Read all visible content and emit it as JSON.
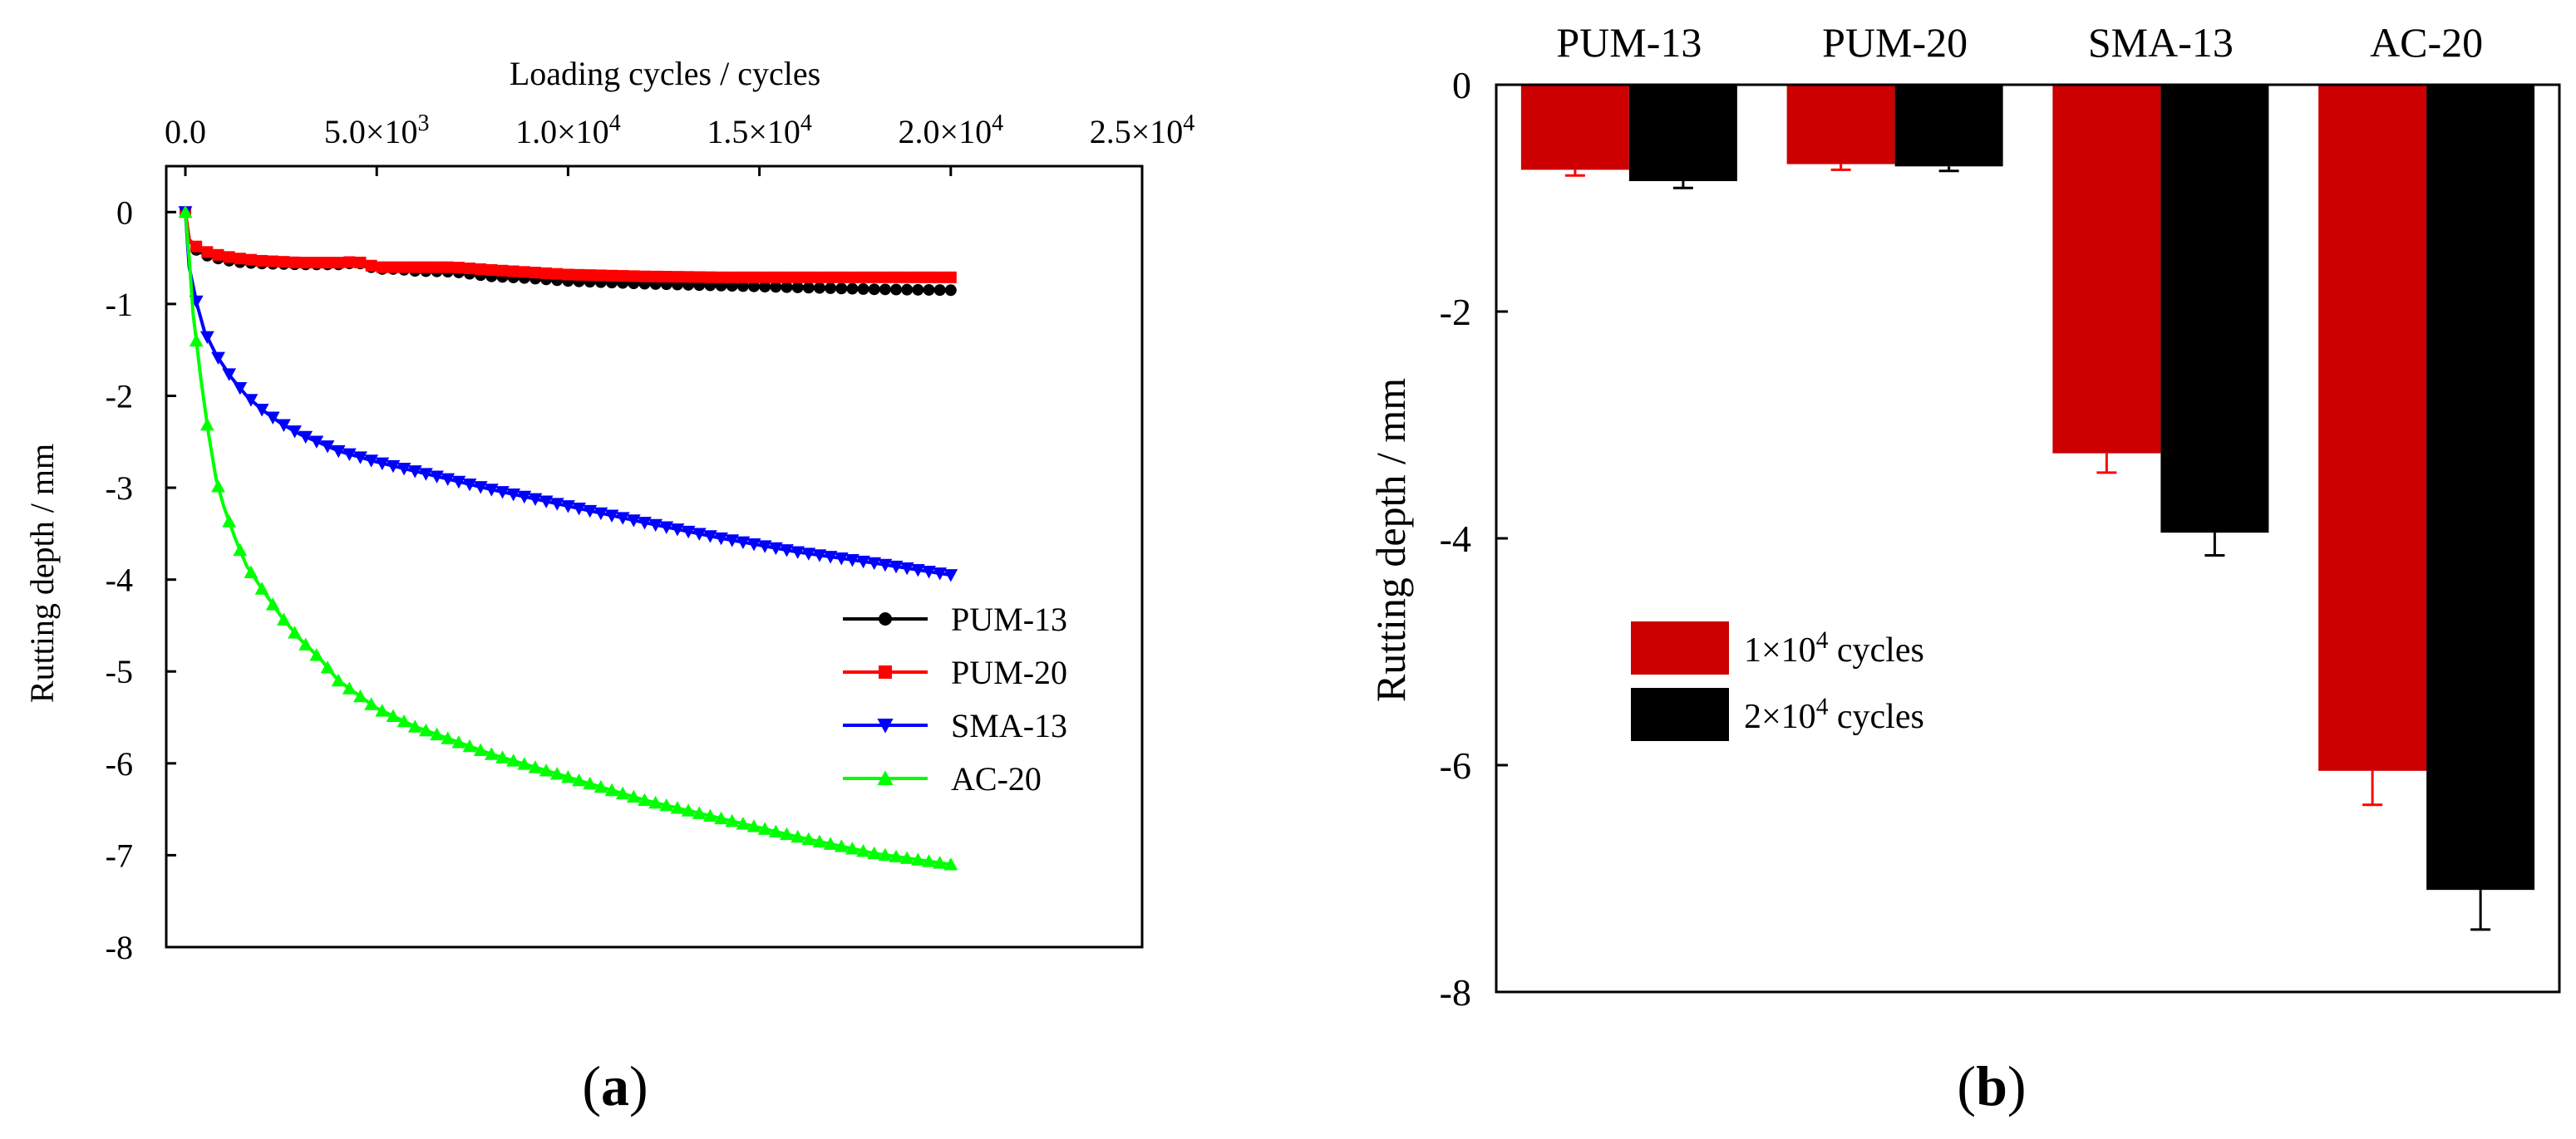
{
  "chart_data": [
    {
      "panel": "a",
      "type": "line",
      "panel_label": "a",
      "xlabel": "Loading cycles / cycles",
      "ylabel": "Rutting depth / mm",
      "xlim": [
        -500,
        25000
      ],
      "ylim": [
        -8,
        0.5
      ],
      "x_ticks": [
        {
          "value": 0,
          "label": "0.0",
          "sup": ""
        },
        {
          "value": 5000,
          "label": "5.0×10",
          "sup": "3"
        },
        {
          "value": 10000,
          "label": "1.0×10",
          "sup": "4"
        },
        {
          "value": 15000,
          "label": "1.5×10",
          "sup": "4"
        },
        {
          "value": 20000,
          "label": "2.0×10",
          "sup": "4"
        },
        {
          "value": 25000,
          "label": "2.5×10",
          "sup": "4"
        }
      ],
      "y_ticks": [
        {
          "value": 0,
          "label": "0"
        },
        {
          "value": -1,
          "label": "-1"
        },
        {
          "value": -2,
          "label": "-2"
        },
        {
          "value": -3,
          "label": "-3"
        },
        {
          "value": -4,
          "label": "-4"
        },
        {
          "value": -5,
          "label": "-5"
        },
        {
          "value": -6,
          "label": "-6"
        },
        {
          "value": -7,
          "label": "-7"
        },
        {
          "value": -8,
          "label": "-8"
        }
      ],
      "legend_position": "right-middle",
      "series": [
        {
          "name": "PUM-13",
          "color": "#000000",
          "marker": "circle",
          "x": [
            0,
            100,
            300,
            600,
            1000,
            1500,
            2000,
            3000,
            4000,
            4500,
            5000,
            5500,
            6000,
            7000,
            8000,
            9000,
            10000,
            12000,
            14000,
            16000,
            18000,
            20000
          ],
          "y": [
            0,
            -0.3,
            -0.42,
            -0.48,
            -0.52,
            -0.55,
            -0.56,
            -0.57,
            -0.57,
            -0.55,
            -0.62,
            -0.62,
            -0.64,
            -0.65,
            -0.7,
            -0.72,
            -0.75,
            -0.78,
            -0.8,
            -0.82,
            -0.84,
            -0.85
          ]
        },
        {
          "name": "PUM-20",
          "color": "#ff0000",
          "marker": "square",
          "x": [
            0,
            100,
            300,
            600,
            1000,
            1500,
            2000,
            3000,
            4000,
            4500,
            5000,
            6000,
            7000,
            8000,
            10000,
            12000,
            14000,
            16000,
            18000,
            20000
          ],
          "y": [
            0,
            -0.3,
            -0.38,
            -0.44,
            -0.48,
            -0.51,
            -0.53,
            -0.55,
            -0.55,
            -0.54,
            -0.6,
            -0.6,
            -0.6,
            -0.63,
            -0.68,
            -0.7,
            -0.71,
            -0.71,
            -0.71,
            -0.71
          ]
        },
        {
          "name": "SMA-13",
          "color": "#0000ff",
          "marker": "triangle-down",
          "x": [
            0,
            100,
            300,
            500,
            800,
            1200,
            1600,
            2000,
            2500,
            3000,
            4000,
            5000,
            6000,
            7000,
            8000,
            10000,
            12000,
            14000,
            16000,
            18000,
            20000
          ],
          "y": [
            0,
            -0.6,
            -1.0,
            -1.3,
            -1.55,
            -1.8,
            -2.0,
            -2.15,
            -2.3,
            -2.42,
            -2.6,
            -2.72,
            -2.82,
            -2.92,
            -3.02,
            -3.2,
            -3.38,
            -3.55,
            -3.7,
            -3.82,
            -3.95
          ]
        },
        {
          "name": "AC-20",
          "color": "#00ff00",
          "marker": "triangle-up",
          "x": [
            0,
            100,
            200,
            400,
            600,
            800,
            1000,
            1300,
            1600,
            2000,
            2500,
            3000,
            3500,
            4000,
            5000,
            6000,
            7000,
            8000,
            10000,
            12000,
            14000,
            16000,
            18000,
            20000
          ],
          "y": [
            0,
            -0.5,
            -1.1,
            -1.8,
            -2.4,
            -2.9,
            -3.2,
            -3.55,
            -3.85,
            -4.1,
            -4.4,
            -4.65,
            -4.85,
            -5.1,
            -5.4,
            -5.6,
            -5.75,
            -5.9,
            -6.15,
            -6.4,
            -6.6,
            -6.8,
            -6.98,
            -7.1
          ]
        }
      ]
    },
    {
      "panel": "b",
      "type": "bar",
      "panel_label": "b",
      "ylabel": "Rutting depth / mm",
      "ylim": [
        -8,
        0
      ],
      "y_ticks": [
        {
          "value": 0,
          "label": "0"
        },
        {
          "value": -2,
          "label": "-2"
        },
        {
          "value": -4,
          "label": "-4"
        },
        {
          "value": -6,
          "label": "-6"
        },
        {
          "value": -8,
          "label": "-8"
        }
      ],
      "categories": [
        "PUM-13",
        "PUM-20",
        "SMA-13",
        "AC-20"
      ],
      "legend_position": "center-left",
      "series": [
        {
          "name": "1×10",
          "sup": "4",
          "suffix": " cycles",
          "color": "#cc0000",
          "error_color": "#ff0000",
          "values": [
            -0.75,
            -0.7,
            -3.25,
            -6.05
          ],
          "errors": [
            0.05,
            0.05,
            0.17,
            0.3
          ]
        },
        {
          "name": "2×10",
          "sup": "4",
          "suffix": " cycles",
          "color": "#000000",
          "error_color": "#000000",
          "values": [
            -0.85,
            -0.72,
            -3.95,
            -7.1
          ],
          "errors": [
            0.06,
            0.04,
            0.2,
            0.35
          ]
        }
      ]
    }
  ]
}
